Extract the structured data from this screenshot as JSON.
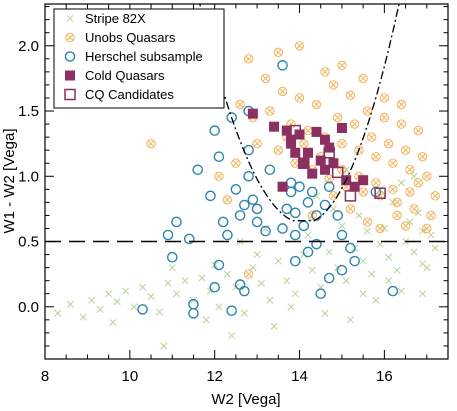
{
  "chart_data": {
    "type": "scatter",
    "xlabel": "W2 [Vega]",
    "ylabel": "W1 - W2 [Vega]",
    "xlim": [
      8,
      17.5
    ],
    "ylim": [
      -0.4,
      2.32
    ],
    "xticks": [
      8,
      10,
      12,
      14,
      16
    ],
    "xtick_labels": [
      "8",
      "10",
      "12",
      "14",
      "16"
    ],
    "yticks": [
      0.0,
      0.5,
      1.0,
      1.5,
      2.0
    ],
    "ytick_labels": [
      "0.0",
      "0.5",
      "1.0",
      "1.5",
      "2.0"
    ],
    "minor_x_step": 0.5,
    "minor_y_step": 0.1,
    "legend_position": "top-left",
    "colors": {
      "stripe": "#b5d39a",
      "unobs": "#f5b25a",
      "herschel": "#2e86b0",
      "cold": "#8c2f61",
      "cq": "#8c2f61"
    },
    "reference_lines": [
      {
        "kind": "horizontal",
        "y": 0.5,
        "style": "dashed"
      },
      {
        "kind": "curve",
        "style": "dash-dot",
        "description": "wedge selection boundary"
      }
    ],
    "series": [
      {
        "name": "Stripe 82X",
        "marker": "cross",
        "color": "#b5d39a",
        "points": [
          [
            8.3,
            -0.05
          ],
          [
            8.6,
            0.02
          ],
          [
            8.9,
            -0.08
          ],
          [
            9.1,
            0.05
          ],
          [
            9.3,
            -0.02
          ],
          [
            9.5,
            0.1
          ],
          [
            9.7,
            0.04
          ],
          [
            9.9,
            0.12
          ],
          [
            10.1,
            0.0
          ],
          [
            10.3,
            0.15
          ],
          [
            10.5,
            0.08
          ],
          [
            10.7,
            -0.04
          ],
          [
            10.9,
            0.18
          ],
          [
            11.1,
            0.1
          ],
          [
            11.3,
            0.2
          ],
          [
            11.5,
            0.05
          ],
          [
            11.7,
            0.22
          ],
          [
            11.9,
            0.12
          ],
          [
            12.1,
            0.0
          ],
          [
            12.3,
            0.25
          ],
          [
            12.5,
            0.15
          ],
          [
            12.7,
            -0.05
          ],
          [
            12.9,
            0.3
          ],
          [
            13.1,
            0.18
          ],
          [
            13.3,
            0.05
          ],
          [
            13.5,
            0.35
          ],
          [
            13.7,
            0.2
          ],
          [
            13.9,
            0.1
          ],
          [
            14.1,
            0.4
          ],
          [
            14.3,
            0.28
          ],
          [
            14.5,
            0.15
          ],
          [
            14.7,
            0.42
          ],
          [
            14.9,
            0.3
          ],
          [
            15.1,
            0.2
          ],
          [
            15.3,
            0.45
          ],
          [
            15.5,
            0.35
          ],
          [
            15.7,
            0.25
          ],
          [
            15.9,
            0.48
          ],
          [
            16.1,
            0.38
          ],
          [
            16.3,
            0.28
          ],
          [
            16.5,
            0.5
          ],
          [
            16.7,
            0.42
          ],
          [
            16.9,
            0.33
          ],
          [
            17.1,
            0.55
          ],
          [
            15.2,
            -0.1
          ],
          [
            15.8,
            0.05
          ],
          [
            16.4,
            0.12
          ],
          [
            14.6,
            -0.05
          ],
          [
            13.8,
            0.0
          ],
          [
            16.0,
            0.6
          ],
          [
            16.6,
            0.65
          ],
          [
            15.4,
            0.7
          ],
          [
            14.8,
            0.75
          ],
          [
            16.2,
            0.8
          ],
          [
            16.8,
            0.72
          ],
          [
            15.0,
            0.62
          ],
          [
            13.4,
            -0.15
          ],
          [
            12.4,
            -0.22
          ],
          [
            11.8,
            -0.1
          ],
          [
            10.8,
            -0.3
          ],
          [
            9.6,
            -0.12
          ],
          [
            14.2,
            0.55
          ],
          [
            15.6,
            0.58
          ],
          [
            16.9,
            0.58
          ],
          [
            17.2,
            0.45
          ],
          [
            13.0,
            0.4
          ],
          [
            12.0,
            0.32
          ],
          [
            11.0,
            0.3
          ],
          [
            15.9,
            0.9
          ],
          [
            16.4,
            0.95
          ],
          [
            14.4,
            0.85
          ],
          [
            16.7,
            1.0
          ],
          [
            15.1,
            1.05
          ],
          [
            14.0,
            1.1
          ],
          [
            13.2,
            0.6
          ],
          [
            12.6,
            0.5
          ],
          [
            16.1,
            0.2
          ],
          [
            15.5,
            0.1
          ],
          [
            16.9,
            0.1
          ],
          [
            17.0,
            0.3
          ]
        ]
      },
      {
        "name": "Unobs Quasars",
        "marker": "circle-x",
        "color": "#f5b25a",
        "points": [
          [
            13.2,
            1.75
          ],
          [
            13.6,
            1.65
          ],
          [
            14.0,
            1.6
          ],
          [
            14.4,
            1.55
          ],
          [
            14.8,
            1.7
          ],
          [
            15.2,
            1.62
          ],
          [
            15.6,
            1.5
          ],
          [
            16.0,
            1.45
          ],
          [
            16.4,
            1.4
          ],
          [
            16.8,
            1.35
          ],
          [
            13.8,
            1.4
          ],
          [
            14.2,
            1.35
          ],
          [
            14.6,
            1.3
          ],
          [
            15.0,
            1.25
          ],
          [
            15.4,
            1.2
          ],
          [
            15.8,
            1.15
          ],
          [
            16.2,
            1.1
          ],
          [
            16.6,
            1.05
          ],
          [
            17.0,
            1.0
          ],
          [
            13.5,
            1.2
          ],
          [
            13.9,
            1.1
          ],
          [
            14.3,
            1.05
          ],
          [
            14.7,
            0.98
          ],
          [
            15.1,
            0.92
          ],
          [
            15.5,
            0.88
          ],
          [
            15.9,
            0.85
          ],
          [
            16.3,
            0.8
          ],
          [
            16.7,
            0.75
          ],
          [
            17.1,
            0.7
          ],
          [
            14.9,
            1.45
          ],
          [
            15.3,
            1.4
          ],
          [
            15.7,
            1.3
          ],
          [
            16.1,
            1.25
          ],
          [
            16.5,
            1.2
          ],
          [
            16.9,
            1.15
          ],
          [
            15.0,
            1.05
          ],
          [
            15.4,
            1.0
          ],
          [
            15.8,
            0.95
          ],
          [
            16.2,
            0.9
          ],
          [
            16.6,
            0.88
          ],
          [
            14.5,
            1.15
          ],
          [
            14.1,
            1.25
          ],
          [
            13.7,
            1.3
          ],
          [
            12.6,
            1.55
          ],
          [
            12.9,
            1.45
          ],
          [
            13.3,
            1.5
          ],
          [
            16.0,
            1.6
          ],
          [
            16.4,
            1.55
          ],
          [
            15.5,
            1.75
          ],
          [
            15.0,
            1.85
          ],
          [
            14.6,
            1.8
          ],
          [
            16.8,
            0.95
          ],
          [
            17.2,
            0.85
          ],
          [
            16.3,
            0.7
          ],
          [
            15.6,
            0.65
          ],
          [
            15.9,
            0.6
          ],
          [
            16.5,
            0.62
          ],
          [
            17.0,
            0.6
          ],
          [
            10.5,
            1.25
          ],
          [
            13.0,
            1.25
          ],
          [
            12.5,
            1.1
          ],
          [
            12.1,
            1.0
          ],
          [
            14.8,
            0.85
          ],
          [
            15.2,
            0.75
          ],
          [
            14.3,
            0.7
          ],
          [
            12.8,
            0.25
          ],
          [
            12.3,
            0.82
          ],
          [
            12.8,
            1.9
          ],
          [
            13.5,
            1.95
          ],
          [
            14.0,
            2.0
          ]
        ]
      },
      {
        "name": "Herschel subsample",
        "marker": "circle",
        "color": "#2e86b0",
        "points": [
          [
            13.6,
            1.85
          ],
          [
            12.8,
            1.5
          ],
          [
            12.0,
            1.35
          ],
          [
            12.1,
            1.15
          ],
          [
            11.6,
            1.05
          ],
          [
            12.4,
            1.45
          ],
          [
            12.8,
            1.2
          ],
          [
            12.5,
            0.9
          ],
          [
            12.9,
            0.82
          ],
          [
            12.7,
            0.78
          ],
          [
            11.9,
            0.85
          ],
          [
            12.2,
            0.65
          ],
          [
            11.1,
            0.65
          ],
          [
            10.9,
            0.55
          ],
          [
            11.0,
            0.38
          ],
          [
            11.4,
            0.52
          ],
          [
            12.3,
            0.55
          ],
          [
            12.6,
            0.7
          ],
          [
            13.0,
            0.65
          ],
          [
            13.2,
            0.58
          ],
          [
            13.6,
            0.6
          ],
          [
            13.9,
            0.55
          ],
          [
            14.1,
            0.62
          ],
          [
            14.4,
            0.7
          ],
          [
            14.6,
            0.78
          ],
          [
            14.3,
            0.88
          ],
          [
            14.0,
            0.92
          ],
          [
            13.8,
            0.95
          ],
          [
            13.7,
            0.75
          ],
          [
            13.9,
            0.72
          ],
          [
            14.7,
            0.92
          ],
          [
            14.9,
            0.7
          ],
          [
            15.0,
            0.55
          ],
          [
            15.2,
            0.45
          ],
          [
            15.3,
            0.35
          ],
          [
            15.0,
            0.28
          ],
          [
            14.7,
            0.22
          ],
          [
            14.4,
            0.48
          ],
          [
            14.2,
            0.42
          ],
          [
            13.9,
            0.35
          ],
          [
            14.5,
            0.1
          ],
          [
            12.1,
            0.32
          ],
          [
            12.0,
            0.15
          ],
          [
            12.6,
            0.17
          ],
          [
            12.7,
            0.12
          ],
          [
            12.4,
            -0.03
          ],
          [
            11.5,
            0.02
          ],
          [
            11.5,
            -0.05
          ],
          [
            10.3,
            -0.02
          ],
          [
            16.2,
            0.12
          ],
          [
            15.8,
            0.88
          ],
          [
            13.0,
            0.75
          ],
          [
            12.8,
            1.0
          ],
          [
            13.3,
            1.05
          ],
          [
            13.8,
            0.88
          ],
          [
            14.2,
            0.8
          ]
        ]
      },
      {
        "name": "Cold Quasars",
        "marker": "filled-square",
        "color": "#8c2f61",
        "points": [
          [
            12.9,
            1.48
          ],
          [
            13.4,
            1.38
          ],
          [
            13.7,
            1.35
          ],
          [
            13.8,
            1.25
          ],
          [
            14.0,
            1.32
          ],
          [
            14.2,
            1.18
          ],
          [
            14.4,
            1.34
          ],
          [
            14.6,
            1.28
          ],
          [
            14.7,
            1.22
          ],
          [
            15.0,
            1.37
          ],
          [
            14.3,
            1.02
          ],
          [
            14.5,
            1.12
          ],
          [
            14.8,
            1.1
          ],
          [
            13.9,
            1.18
          ],
          [
            13.6,
            0.92
          ],
          [
            14.1,
            1.1
          ],
          [
            15.1,
            0.97
          ],
          [
            15.5,
            0.97
          ],
          [
            15.3,
            0.92
          ],
          [
            14.6,
            1.05
          ],
          [
            13.8,
            1.28
          ]
        ]
      },
      {
        "name": "CQ Candidates",
        "marker": "open-square",
        "color": "#8c2f61",
        "points": [
          [
            13.9,
            1.35
          ],
          [
            14.7,
            1.18
          ],
          [
            15.9,
            0.87
          ],
          [
            14.1,
            1.1
          ],
          [
            14.9,
            1.03
          ],
          [
            15.2,
            0.85
          ]
        ]
      }
    ]
  }
}
